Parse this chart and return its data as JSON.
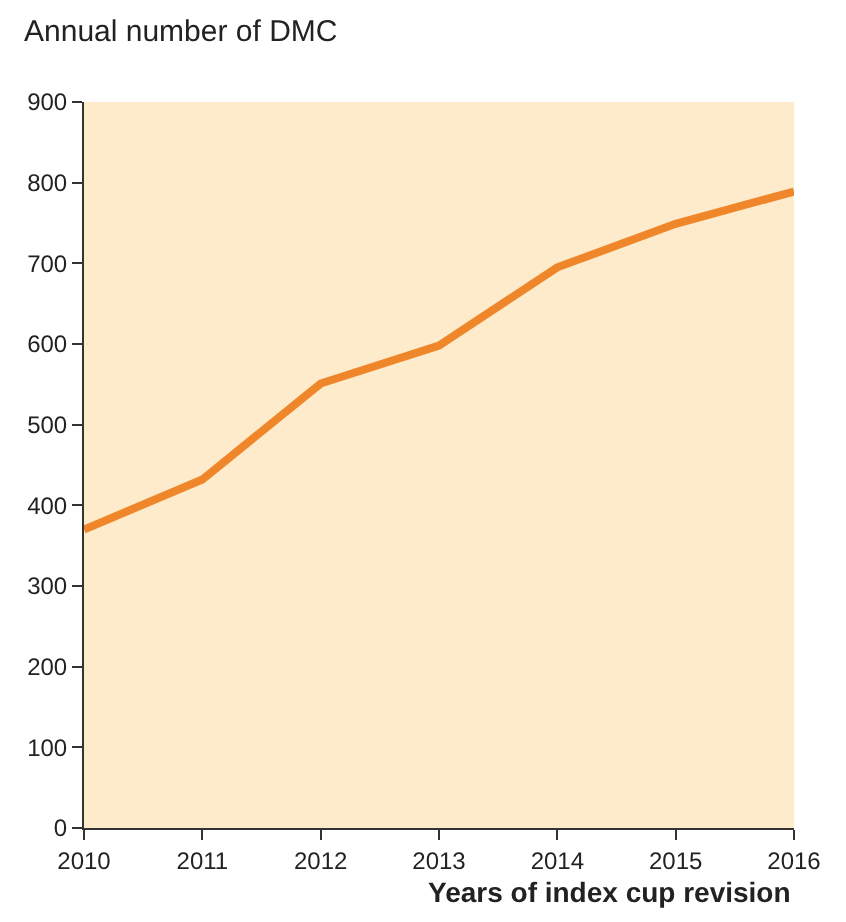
{
  "chart_data": {
    "type": "line",
    "title": "Annual number of DMC",
    "xlabel": "Years of index cup revision",
    "x": [
      2010,
      2011,
      2012,
      2013,
      2014,
      2015,
      2016
    ],
    "series": [
      {
        "color": "#f0862a",
        "values": [
          370,
          432,
          551,
          598,
          695,
          749,
          789
        ]
      }
    ],
    "xlim": [
      2010,
      2016
    ],
    "xticks": [
      2010,
      2011,
      2012,
      2013,
      2014,
      2015,
      2016
    ],
    "ylim": [
      0,
      900
    ],
    "yticks": [
      0,
      100,
      200,
      300,
      400,
      500,
      600,
      700,
      800,
      900
    ],
    "grid": false,
    "legend": false,
    "marker": "none",
    "line_style": "solid"
  }
}
